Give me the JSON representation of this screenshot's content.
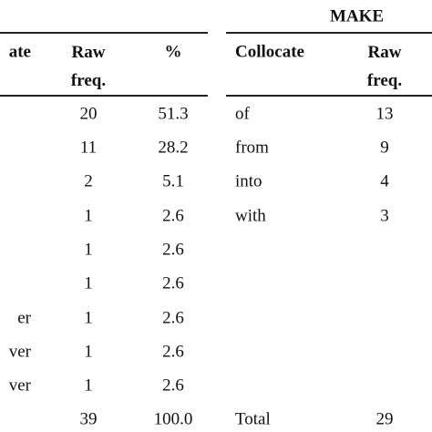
{
  "left": {
    "headers": [
      "ate",
      "Raw freq.",
      "%"
    ],
    "rows": [
      {
        "raw": "20",
        "pct": "51.3"
      },
      {
        "raw": "11",
        "pct": "28.2"
      },
      {
        "raw": "2",
        "pct": "5.1"
      },
      {
        "raw": "1",
        "pct": "2.6"
      },
      {
        "raw": "1",
        "pct": "2.6"
      },
      {
        "raw": "1",
        "pct": "2.6"
      },
      {
        "collocate": "er",
        "raw": "1",
        "pct": "2.6"
      },
      {
        "collocate": "ver",
        "raw": "1",
        "pct": "2.6"
      },
      {
        "collocate": "ver",
        "raw": "1",
        "pct": "2.6"
      },
      {
        "raw": "39",
        "pct": "100.0"
      }
    ]
  },
  "right": {
    "title": "MAKE",
    "headers": [
      "Collocate",
      "Raw freq."
    ],
    "rows": [
      {
        "collocate": "of",
        "raw": "13"
      },
      {
        "collocate": "from",
        "raw": "9"
      },
      {
        "collocate": "into",
        "raw": "4"
      },
      {
        "collocate": "with",
        "raw": "3"
      }
    ],
    "total": {
      "collocate": "Total",
      "raw": "29"
    }
  }
}
